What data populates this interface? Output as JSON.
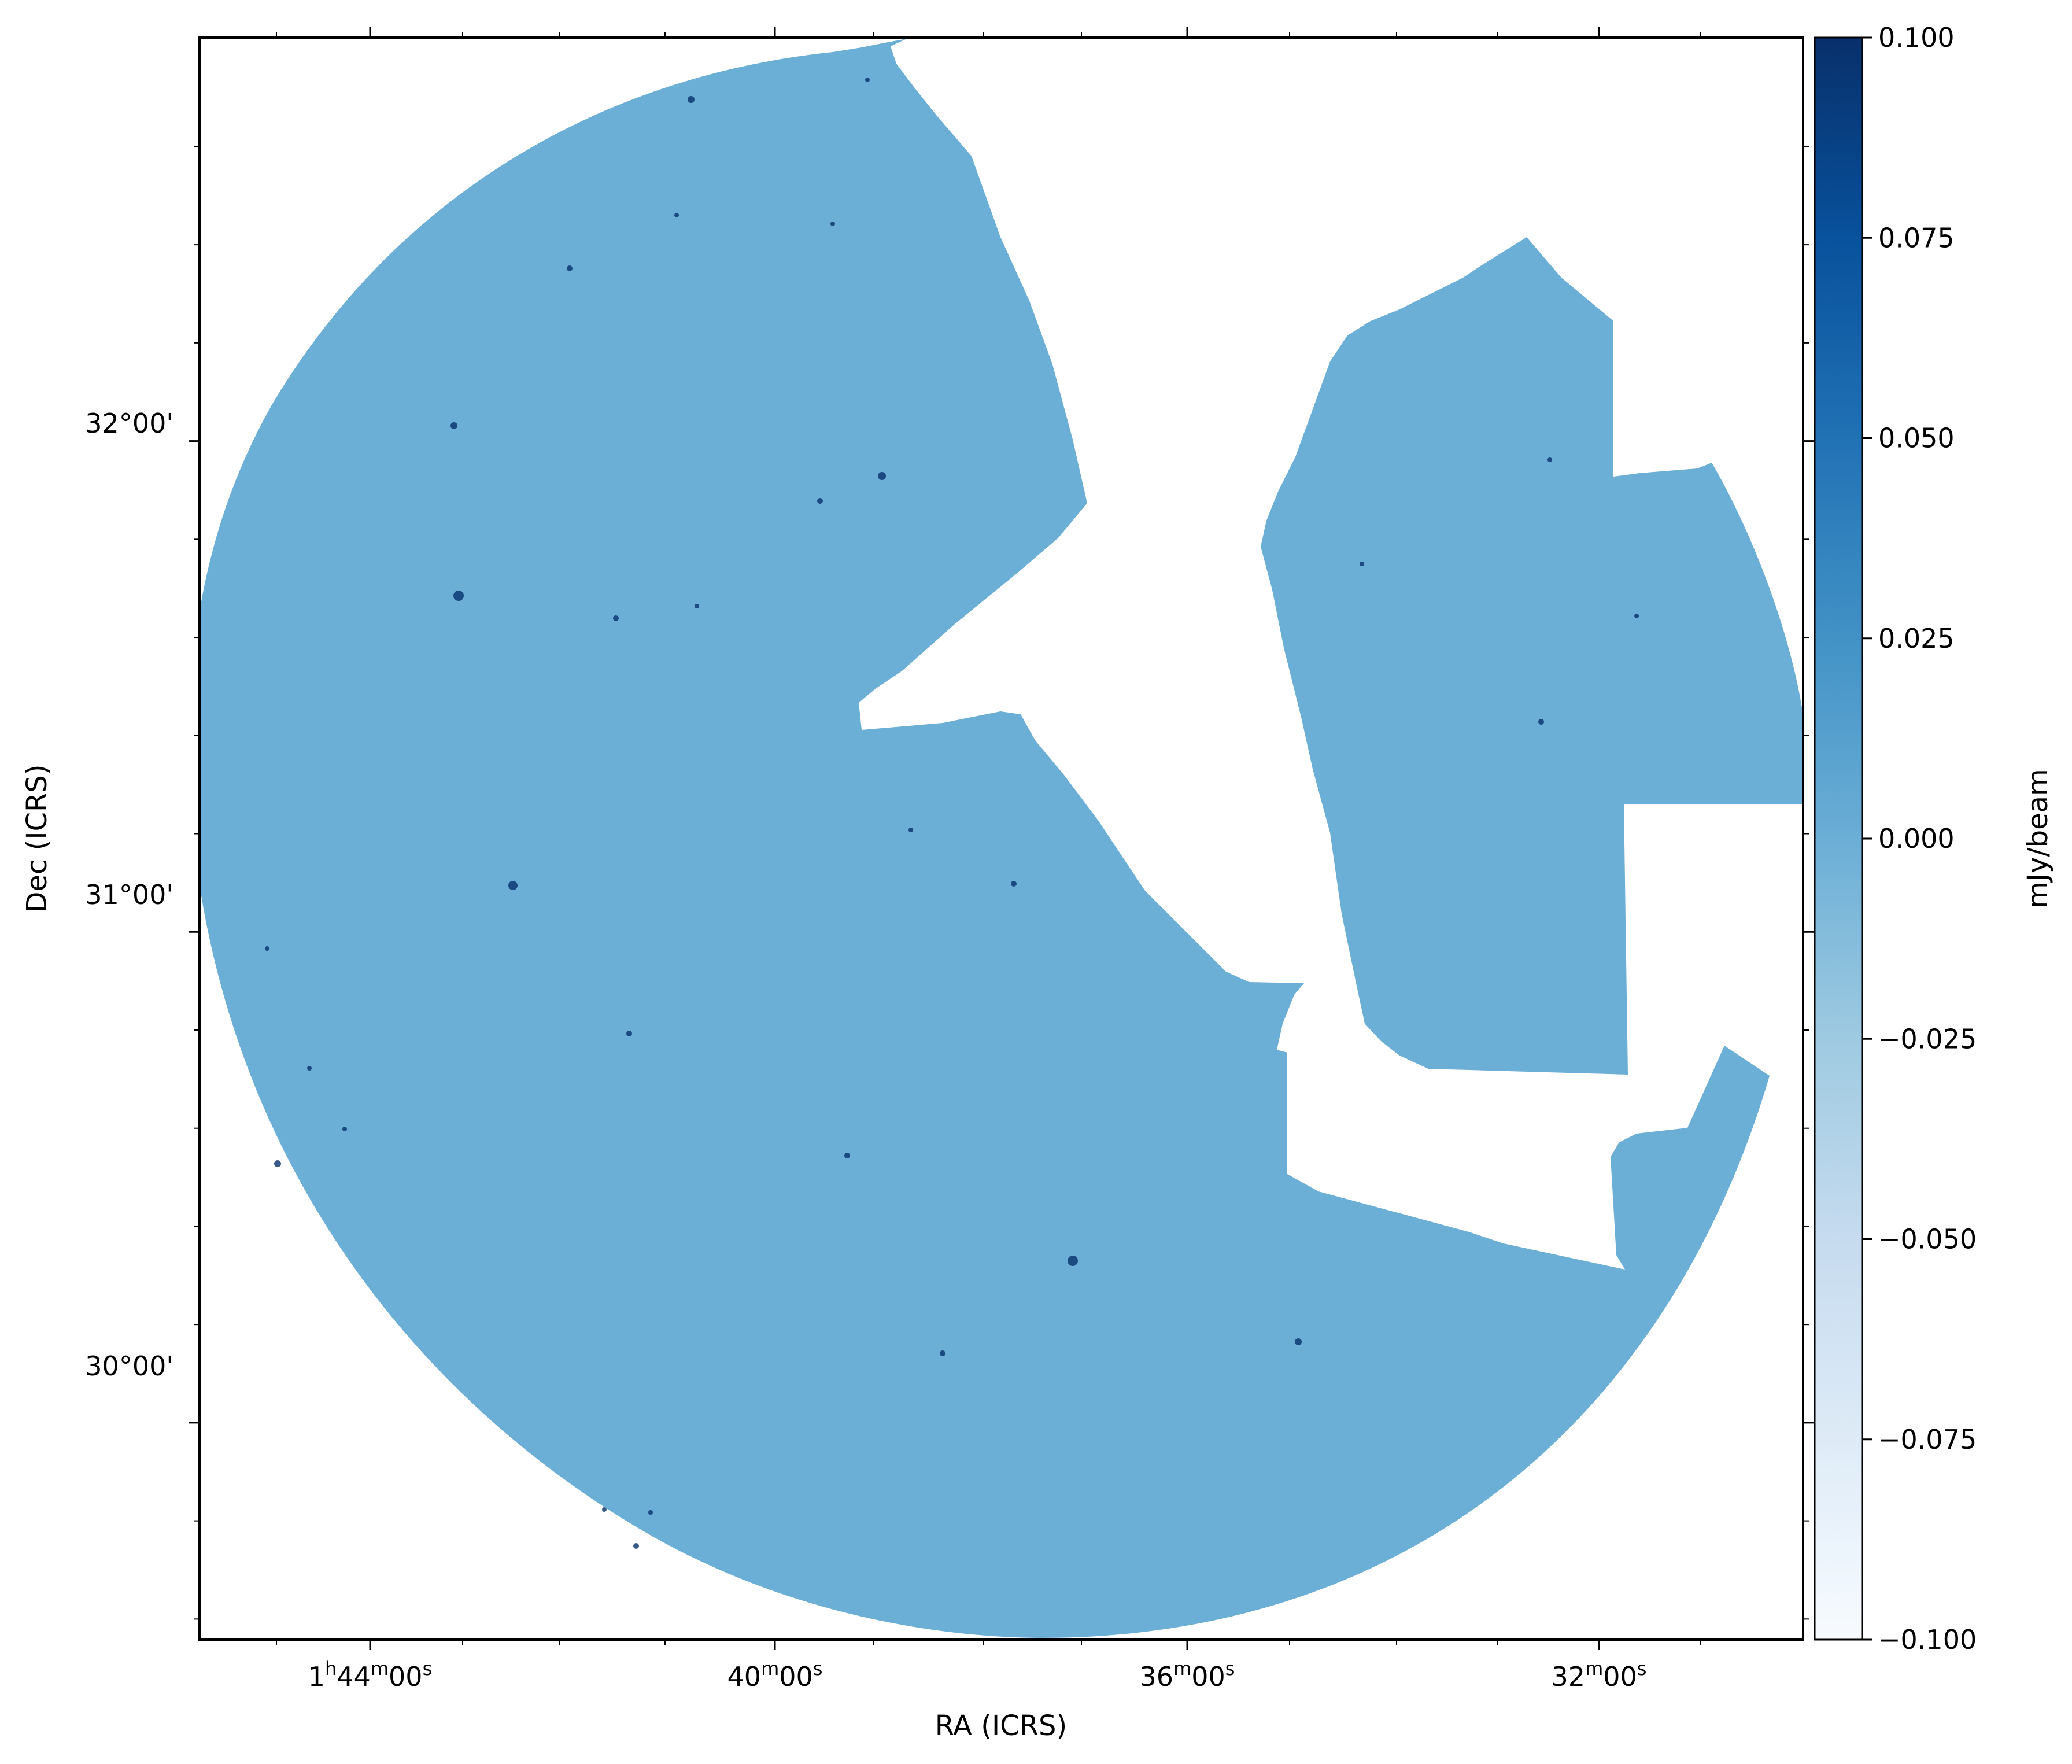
{
  "chart_data": {
    "type": "heatmap",
    "title": "",
    "xlabel": "RA (ICRS)",
    "ylabel": "Dec (ICRS)",
    "x_unit": "RA (h m s)",
    "y_unit": "Dec (deg)",
    "xlim": [
      "1h45m58s",
      "1h30m25s"
    ],
    "ylim": [
      29.558,
      32.822
    ],
    "x_ticks": [
      {
        "value": "1h44m00s",
        "label_main": "1",
        "label_h": "h",
        "label_mid": "44",
        "label_m": "m",
        "label_end": "00",
        "label_s": "s"
      },
      {
        "value": "1h40m00s",
        "label_main": "",
        "label_h": "",
        "label_mid": "40",
        "label_m": "m",
        "label_end": "00",
        "label_s": "s"
      },
      {
        "value": "1h36m00s",
        "label_main": "",
        "label_h": "",
        "label_mid": "36",
        "label_m": "m",
        "label_end": "00",
        "label_s": "s"
      },
      {
        "value": "1h32m00s",
        "label_main": "",
        "label_h": "",
        "label_mid": "32",
        "label_m": "m",
        "label_end": "00",
        "label_s": "s"
      }
    ],
    "y_ticks": [
      {
        "value": 30.0,
        "label": "30°00'"
      },
      {
        "value": 31.0,
        "label": "31°00'"
      },
      {
        "value": 32.0,
        "label": "32°00'"
      }
    ],
    "colorbar": {
      "label": "mJy/beam",
      "range": [
        -0.1,
        0.1
      ],
      "colormap": "Blues",
      "ticks": [
        {
          "value": 0.1,
          "label": "0.100"
        },
        {
          "value": 0.075,
          "label": "0.075"
        },
        {
          "value": 0.05,
          "label": "0.050"
        },
        {
          "value": 0.025,
          "label": "0.025"
        },
        {
          "value": 0.0,
          "label": "0.000"
        },
        {
          "value": -0.025,
          "label": "−0.025"
        },
        {
          "value": -0.05,
          "label": "−0.050"
        },
        {
          "value": -0.075,
          "label": "−0.075"
        },
        {
          "value": -0.1,
          "label": "−0.100"
        }
      ],
      "colors": [
        "#f7fbff",
        "#deebf7",
        "#c6dbef",
        "#9ecae1",
        "#6baed6",
        "#4292c6",
        "#2171b5",
        "#08519c",
        "#08306b"
      ]
    },
    "map_fill_color": "#6baed6",
    "blank_color": "#ffffff",
    "grid": false
  }
}
